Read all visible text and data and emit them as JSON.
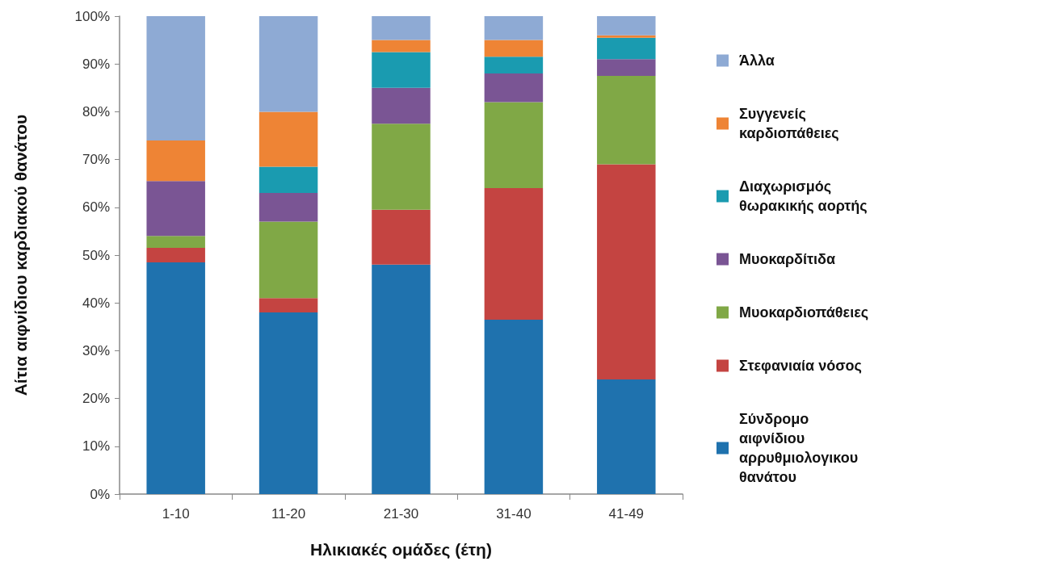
{
  "chart_data": {
    "type": "bar",
    "stacked": true,
    "xlabel": "Ηλικιακές ομάδες (έτη)",
    "ylabel": "Αίτια αιφνίδιου καρδιακού θανάτου",
    "categories": [
      "1-10",
      "11-20",
      "21-30",
      "31-40",
      "41-49"
    ],
    "ylim": [
      0,
      100
    ],
    "yticks": [
      {
        "value": 0,
        "label": "0%"
      },
      {
        "value": 10,
        "label": "10%"
      },
      {
        "value": 20,
        "label": "20%"
      },
      {
        "value": 30,
        "label": "30%"
      },
      {
        "value": 40,
        "label": "40%"
      },
      {
        "value": 50,
        "label": "50%"
      },
      {
        "value": 60,
        "label": "60%"
      },
      {
        "value": 70,
        "label": "70%"
      },
      {
        "value": 80,
        "label": "80%"
      },
      {
        "value": 90,
        "label": "90%"
      },
      {
        "value": 100,
        "label": "100%"
      }
    ],
    "grid": false,
    "legend": "right",
    "series": [
      {
        "name": "Σύνδρομο αιφνίδιου αρρυθμιολογικου θανάτου",
        "color": "#1f72ae",
        "values": [
          48.5,
          38,
          48,
          36.5,
          24
        ]
      },
      {
        "name": "Στεφανιαία νόσος",
        "color": "#c44441",
        "values": [
          3,
          3,
          11.5,
          27.5,
          45
        ]
      },
      {
        "name": "Μυοκαρδιοπάθειες",
        "color": "#80a846",
        "values": [
          2.5,
          16,
          18,
          18,
          18.5
        ]
      },
      {
        "name": "Μυοκαρδίτιδα",
        "color": "#7a5594",
        "values": [
          11.5,
          6,
          7.5,
          6,
          3.5
        ]
      },
      {
        "name": "Διαχωρισμός θωρακικής αορτής",
        "color": "#1a9bb0",
        "values": [
          0,
          5.5,
          7.5,
          3.5,
          4.5
        ]
      },
      {
        "name": "Συγγενείς καρδιοπάθειες",
        "color": "#ee8435",
        "values": [
          8.5,
          11.5,
          2.5,
          3.5,
          0.5
        ]
      },
      {
        "name": "Άλλα",
        "color": "#8eaad4",
        "values": [
          26,
          20,
          5,
          5,
          4
        ]
      }
    ]
  }
}
